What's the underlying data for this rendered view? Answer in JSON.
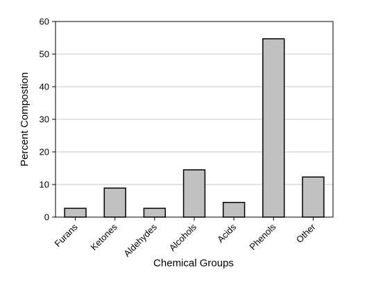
{
  "chart_data": {
    "type": "bar",
    "categories": [
      "Furans",
      "Ketones",
      "Aldehydes",
      "Alcohols",
      "Acids",
      "Phenols",
      "Other"
    ],
    "values": [
      2.7,
      8.9,
      2.7,
      14.5,
      4.5,
      54.7,
      12.3
    ],
    "xlabel": "Chemical Groups",
    "ylabel": "Percent Compostion",
    "ylim": [
      0,
      60
    ],
    "yticks": [
      0,
      10,
      20,
      30,
      40,
      50,
      60
    ],
    "grid": true,
    "legend": "none",
    "colors": {
      "bar_fill": "#c0c0c0",
      "bar_stroke": "#000000",
      "grid": "#c8c8c8"
    }
  }
}
